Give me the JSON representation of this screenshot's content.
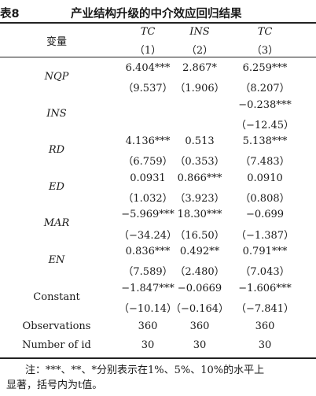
{
  "table": {
    "number": "表8",
    "title": "产业结构升级的中介效应回归结果",
    "stub_header": "变量",
    "columns": [
      {
        "name": "TC",
        "index": "（1）"
      },
      {
        "name": "INS",
        "index": "（2）"
      },
      {
        "name": "TC",
        "index": "（3）"
      }
    ],
    "rows": [
      {
        "label": "NQP",
        "italic": true,
        "coef": [
          "6.404***",
          "2.867*",
          "6.259***"
        ],
        "t": [
          "（9.537）",
          "（1.906）",
          "（8.207）"
        ]
      },
      {
        "label": "INS",
        "italic": true,
        "coef": [
          "",
          "",
          "−0.238***"
        ],
        "t": [
          "",
          "",
          "（−12.45）"
        ]
      },
      {
        "label": "RD",
        "italic": true,
        "coef": [
          "4.136***",
          "0.513",
          "5.138***"
        ],
        "t": [
          "（6.759）",
          "（0.353）",
          "（7.483）"
        ]
      },
      {
        "label": "ED",
        "italic": true,
        "coef": [
          "0.0931",
          "0.866***",
          "0.0910"
        ],
        "t": [
          "（1.032）",
          "（3.923）",
          "（0.808）"
        ]
      },
      {
        "label": "MAR",
        "italic": true,
        "coef": [
          "−5.969***",
          "18.30***",
          "−0.699"
        ],
        "t": [
          "（−34.24）",
          "（16.50）",
          "（−1.387）"
        ]
      },
      {
        "label": "EN",
        "italic": true,
        "coef": [
          "0.836***",
          "0.492**",
          "0.791***"
        ],
        "t": [
          "（7.589）",
          "（2.480）",
          "（7.043）"
        ]
      },
      {
        "label": "Constant",
        "italic": false,
        "coef": [
          "−1.847***",
          "−0.0669",
          "−1.606***"
        ],
        "t": [
          "（−10.14）",
          "（−0.164）",
          "（−7.841）"
        ]
      }
    ],
    "stats": [
      {
        "label": "Observations",
        "values": [
          "360",
          "360",
          "360"
        ]
      },
      {
        "label": "Number of id",
        "values": [
          "30",
          "30",
          "30"
        ]
      }
    ],
    "note_line1": "注：***、**、*分别表示在1%、5%、10%的水平上",
    "note_line2": "显著，括号内为t值。"
  }
}
